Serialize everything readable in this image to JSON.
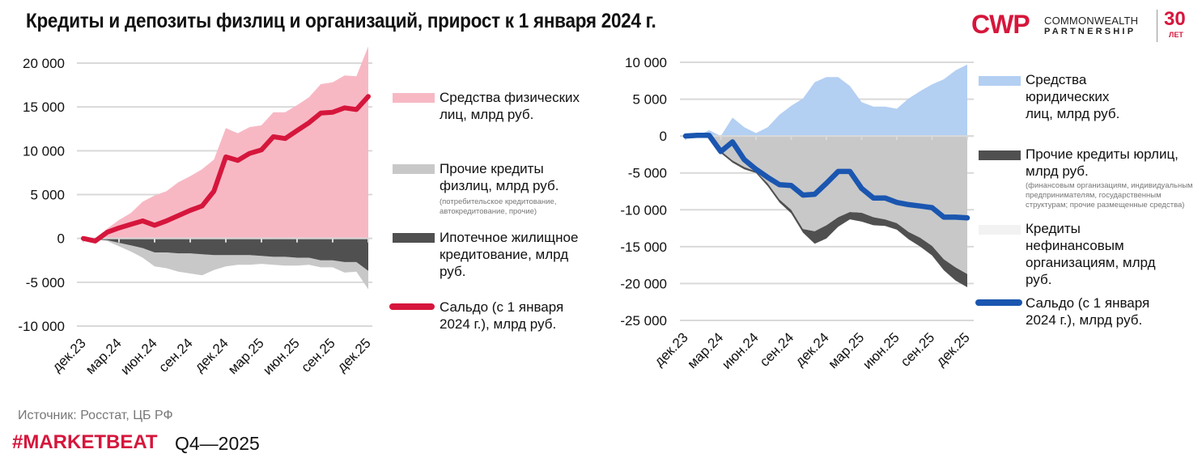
{
  "title": "Кредиты и депозиты физлиц и организаций, прирост к 1 января 2024 г.",
  "logo": {
    "mark": "CWP",
    "line1": "COMMONWEALTH",
    "line2": "PARTNERSHIP",
    "years": "30",
    "years_label": "ЛЕТ"
  },
  "footer": {
    "source": "Источник: Росстат,  ЦБ РФ",
    "hashtag": "#MARKETBEAT",
    "period": "Q4—2025"
  },
  "colors": {
    "brand_red": "#d6163c",
    "pink": "#f7b8c4",
    "light_gray": "#c8c8c8",
    "dark_gray": "#505050",
    "light_blue": "#b3cff2",
    "blue": "#1a56b0"
  },
  "chart_data": [
    {
      "type": "area",
      "x_tick_labels": [
        "дек.23",
        "мар.24",
        "июн.24",
        "сен.24",
        "дек.24",
        "мар.25",
        "июн.25",
        "сен.25",
        "дек.25"
      ],
      "x_frequency": "monthly, дек.23 – дек.25",
      "ylim": [
        -10000,
        20000
      ],
      "y_ticks": [
        20000,
        15000,
        10000,
        5000,
        0,
        -5000,
        -10000
      ],
      "y_tick_labels": [
        "20 000",
        "15 000",
        "10 000",
        "5 000",
        "0",
        "-5 000",
        "-10 000"
      ],
      "grid": true,
      "legend_position": "right",
      "series": [
        {
          "name": "Средства физических лиц, млрд руб.",
          "kind": "area",
          "color": "#f7b8c4",
          "values": [
            0,
            -200,
            1100,
            2100,
            2900,
            4200,
            4900,
            5400,
            6400,
            7100,
            7900,
            9000,
            12600,
            12000,
            12700,
            12900,
            14400,
            14400,
            15200,
            16100,
            17600,
            17800,
            18600,
            18500,
            21900
          ]
        },
        {
          "name": "Ипотечное жилищное кредитование, млрд руб.",
          "kind": "area",
          "color": "#505050",
          "values": [
            0,
            -100,
            -200,
            -500,
            -800,
            -1100,
            -1600,
            -1600,
            -1700,
            -1700,
            -1800,
            -1900,
            -1900,
            -1900,
            -1900,
            -2000,
            -2100,
            -2100,
            -2200,
            -2200,
            -2500,
            -2500,
            -2700,
            -2700,
            -3700
          ]
        },
        {
          "name": "Прочие кредиты физлиц, млрд руб.",
          "note": "(потребительское кредитование, автокредитование, прочие)",
          "kind": "area",
          "color": "#c8c8c8",
          "values": [
            0,
            0,
            -100,
            -400,
            -700,
            -1100,
            -1600,
            -1800,
            -2100,
            -2300,
            -2400,
            -1700,
            -1300,
            -1100,
            -1100,
            -900,
            -900,
            -1000,
            -900,
            -800,
            -800,
            -800,
            -1200,
            -1100,
            -2100
          ]
        },
        {
          "name": "Сальдо (с 1 января 2024 г.), млрд руб.",
          "kind": "line",
          "color": "#d6163c",
          "values": [
            0,
            -300,
            700,
            1200,
            1600,
            2000,
            1500,
            2000,
            2600,
            3200,
            3700,
            5400,
            9300,
            8900,
            9700,
            10100,
            11600,
            11400,
            12300,
            13200,
            14300,
            14400,
            14900,
            14700,
            16200
          ]
        }
      ]
    },
    {
      "type": "area",
      "x_tick_labels": [
        "дек.23",
        "мар.24",
        "июн.24",
        "сен.24",
        "дек.24",
        "мар.25",
        "июн.25",
        "сен.25",
        "дек.25"
      ],
      "x_frequency": "monthly, дек.23 – дек.25",
      "ylim": [
        -25000,
        10000
      ],
      "y_ticks": [
        10000,
        5000,
        0,
        -5000,
        -10000,
        -15000,
        -20000,
        -25000
      ],
      "y_tick_labels": [
        "10 000",
        "5 000",
        "0",
        "-5 000",
        "-10 000",
        "-15 000",
        "-20 000",
        "-25 000"
      ],
      "grid": true,
      "legend_position": "right",
      "series": [
        {
          "name": "Средства юридических лиц, млрд руб.",
          "kind": "area",
          "color": "#b3cff2",
          "values": [
            0,
            0,
            800,
            0,
            2500,
            1200,
            400,
            1200,
            2900,
            4100,
            5100,
            7300,
            8000,
            8000,
            6800,
            4600,
            4000,
            4000,
            3700,
            5100,
            6100,
            7000,
            7700,
            8900,
            9700
          ]
        },
        {
          "name": "Кредиты нефинансовым организациям, млрд руб.",
          "kind": "area",
          "color": "#c8c8c8",
          "legend_color": "#f2f2f2",
          "values": [
            0,
            0,
            -100,
            -2000,
            -3300,
            -4200,
            -4800,
            -6400,
            -8600,
            -10000,
            -12600,
            -12900,
            -12100,
            -11000,
            -10300,
            -10400,
            -11000,
            -11300,
            -11800,
            -13000,
            -13800,
            -14900,
            -16700,
            -17800,
            -18700
          ]
        },
        {
          "name": "Прочие кредиты юрлиц, млрд руб.",
          "note": "(финансовым организациям, индивидуальным предпринимателям, государственным структурам; прочие размещенные средства)",
          "kind": "area",
          "color": "#505050",
          "values": [
            0,
            0,
            -100,
            -300,
            -300,
            -300,
            -200,
            -400,
            -400,
            -500,
            -500,
            -1700,
            -1800,
            -1300,
            -1000,
            -1200,
            -1100,
            -900,
            -900,
            -1000,
            -1200,
            -1300,
            -1500,
            -1800,
            -1800
          ]
        },
        {
          "name": "Сальдо (с 1 января 2024 г.), млрд руб.",
          "kind": "line",
          "color": "#1a56b0",
          "values": [
            0,
            100,
            100,
            -2100,
            -800,
            -3200,
            -4500,
            -5600,
            -6600,
            -6700,
            -8000,
            -7900,
            -6400,
            -4800,
            -4800,
            -7100,
            -8400,
            -8400,
            -9000,
            -9300,
            -9500,
            -9700,
            -11000,
            -11000,
            -11100
          ]
        }
      ]
    }
  ]
}
